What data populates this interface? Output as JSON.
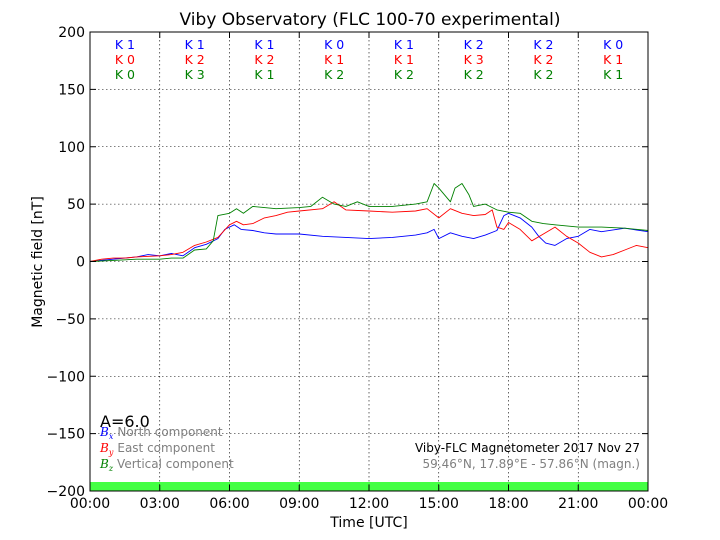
{
  "chart_data": {
    "type": "line",
    "title": "Viby Observatory (FLC 100-70 experimental)",
    "xlabel": "Time [UTC]",
    "ylabel": "Magnetic field [nT]",
    "x_unit": "hours UTC",
    "xlim": [
      0,
      24
    ],
    "ylim": [
      -200,
      200
    ],
    "grid": true,
    "x_tick_labels": [
      "00:00",
      "03:00",
      "06:00",
      "09:00",
      "12:00",
      "15:00",
      "18:00",
      "21:00",
      "00:00"
    ],
    "y_tick_labels": [
      "200",
      "150",
      "100",
      "50",
      "0",
      "−50",
      "−100",
      "−150",
      "−200"
    ],
    "activity_index": "A=6.0",
    "info_lines": [
      "Viby-FLC Magnetometer 2017 Nov 27",
      "59.46°N, 17.89°E - 57.86°N (magn.)"
    ],
    "colors": {
      "north": "#0000ff",
      "east": "#ff0000",
      "vertical": "#008000",
      "band": "#44ff44",
      "legend_text": "#808080"
    },
    "k_indices": [
      {
        "name": "North",
        "color": "#0000ff",
        "values": [
          "K 1",
          "K 1",
          "K 1",
          "K 0",
          "K 1",
          "K 2",
          "K 2",
          "K 0"
        ]
      },
      {
        "name": "East",
        "color": "#ff0000",
        "values": [
          "K 0",
          "K 2",
          "K 2",
          "K 1",
          "K 1",
          "K 3",
          "K 2",
          "K 1"
        ]
      },
      {
        "name": "Vertical",
        "color": "#008000",
        "values": [
          "K 0",
          "K 3",
          "K 1",
          "K 2",
          "K 2",
          "K 2",
          "K 2",
          "K 1"
        ]
      }
    ],
    "legend_position": "lower-left",
    "legend": [
      {
        "symbol": "B",
        "sub": "x",
        "label": "North component",
        "color": "#0000ff"
      },
      {
        "symbol": "B",
        "sub": "y",
        "label": "East component",
        "color": "#ff0000"
      },
      {
        "symbol": "B",
        "sub": "z",
        "label": "Vertical component",
        "color": "#008000"
      }
    ],
    "series": [
      {
        "name": "North component",
        "color": "#0000ff",
        "points": [
          [
            0,
            0
          ],
          [
            1,
            2
          ],
          [
            2,
            4
          ],
          [
            2.5,
            6
          ],
          [
            3,
            5
          ],
          [
            3.5,
            7
          ],
          [
            4,
            5
          ],
          [
            4.5,
            12
          ],
          [
            5,
            15
          ],
          [
            5.5,
            20
          ],
          [
            5.8,
            28
          ],
          [
            6.2,
            32
          ],
          [
            6.5,
            28
          ],
          [
            7,
            27
          ],
          [
            7.5,
            25
          ],
          [
            8,
            24
          ],
          [
            9,
            24
          ],
          [
            10,
            22
          ],
          [
            11,
            21
          ],
          [
            12,
            20
          ],
          [
            13,
            21
          ],
          [
            14,
            23
          ],
          [
            14.5,
            25
          ],
          [
            14.8,
            28
          ],
          [
            15,
            20
          ],
          [
            15.5,
            25
          ],
          [
            16,
            22
          ],
          [
            16.5,
            20
          ],
          [
            17,
            23
          ],
          [
            17.5,
            27
          ],
          [
            17.8,
            40
          ],
          [
            18,
            42
          ],
          [
            18.5,
            38
          ],
          [
            19,
            30
          ],
          [
            19.3,
            22
          ],
          [
            19.6,
            16
          ],
          [
            20,
            14
          ],
          [
            20.5,
            20
          ],
          [
            21,
            22
          ],
          [
            21.5,
            28
          ],
          [
            22,
            26
          ],
          [
            23,
            29
          ],
          [
            24,
            26
          ]
        ]
      },
      {
        "name": "East component",
        "color": "#ff0000",
        "points": [
          [
            0,
            0
          ],
          [
            0.5,
            2
          ],
          [
            1,
            3
          ],
          [
            1.5,
            3
          ],
          [
            2,
            4
          ],
          [
            3,
            5
          ],
          [
            3.5,
            6
          ],
          [
            4,
            8
          ],
          [
            4.5,
            14
          ],
          [
            5,
            17
          ],
          [
            5.5,
            21
          ],
          [
            6,
            32
          ],
          [
            6.3,
            35
          ],
          [
            6.6,
            32
          ],
          [
            7,
            33
          ],
          [
            7.5,
            38
          ],
          [
            8,
            40
          ],
          [
            8.5,
            43
          ],
          [
            9,
            44
          ],
          [
            10,
            46
          ],
          [
            10.5,
            52
          ],
          [
            11,
            45
          ],
          [
            12,
            44
          ],
          [
            13,
            43
          ],
          [
            14,
            44
          ],
          [
            14.5,
            46
          ],
          [
            15,
            38
          ],
          [
            15.5,
            46
          ],
          [
            16,
            42
          ],
          [
            16.5,
            40
          ],
          [
            17,
            41
          ],
          [
            17.3,
            45
          ],
          [
            17.5,
            30
          ],
          [
            17.8,
            28
          ],
          [
            18,
            34
          ],
          [
            18.5,
            28
          ],
          [
            19,
            18
          ],
          [
            19.5,
            24
          ],
          [
            20,
            30
          ],
          [
            20.5,
            22
          ],
          [
            21,
            16
          ],
          [
            21.5,
            8
          ],
          [
            22,
            4
          ],
          [
            22.5,
            6
          ],
          [
            23,
            10
          ],
          [
            23.5,
            14
          ],
          [
            24,
            12
          ]
        ]
      },
      {
        "name": "Vertical component",
        "color": "#008000",
        "points": [
          [
            0,
            0
          ],
          [
            1,
            1
          ],
          [
            2,
            2
          ],
          [
            3,
            2
          ],
          [
            3.5,
            3
          ],
          [
            4,
            3
          ],
          [
            4.5,
            10
          ],
          [
            5,
            11
          ],
          [
            5.3,
            18
          ],
          [
            5.5,
            40
          ],
          [
            6,
            42
          ],
          [
            6.3,
            46
          ],
          [
            6.6,
            42
          ],
          [
            7,
            48
          ],
          [
            8,
            46
          ],
          [
            9,
            47
          ],
          [
            9.5,
            48
          ],
          [
            10,
            56
          ],
          [
            10.5,
            50
          ],
          [
            11,
            48
          ],
          [
            11.5,
            52
          ],
          [
            12,
            48
          ],
          [
            13,
            48
          ],
          [
            14,
            50
          ],
          [
            14.5,
            52
          ],
          [
            14.8,
            68
          ],
          [
            15,
            64
          ],
          [
            15.5,
            52
          ],
          [
            15.7,
            64
          ],
          [
            16,
            68
          ],
          [
            16.3,
            58
          ],
          [
            16.5,
            48
          ],
          [
            17,
            50
          ],
          [
            17.5,
            45
          ],
          [
            18,
            43
          ],
          [
            18.5,
            42
          ],
          [
            19,
            35
          ],
          [
            19.5,
            33
          ],
          [
            20,
            32
          ],
          [
            21,
            30
          ],
          [
            22,
            30
          ],
          [
            23,
            29
          ],
          [
            24,
            27
          ]
        ]
      }
    ]
  }
}
